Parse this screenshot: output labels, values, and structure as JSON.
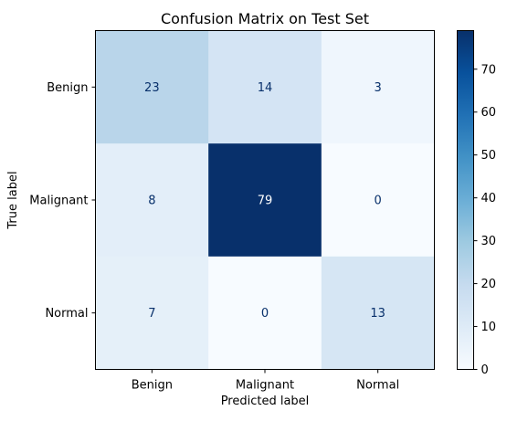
{
  "chart_data": {
    "type": "heatmap",
    "title": "Confusion Matrix on Test Set",
    "xlabel": "Predicted label",
    "ylabel": "True label",
    "x_categories": [
      "Benign",
      "Malignant",
      "Normal"
    ],
    "y_categories": [
      "Benign",
      "Malignant",
      "Normal"
    ],
    "values": [
      [
        23,
        14,
        3
      ],
      [
        8,
        79,
        0
      ],
      [
        7,
        0,
        13
      ]
    ],
    "colorbar": {
      "min": 0,
      "max": 79,
      "ticks": [
        "0",
        "10",
        "20",
        "30",
        "40",
        "50",
        "60",
        "70"
      ],
      "colormap": "Blues"
    },
    "colors": {
      "text_dark": "#08306b",
      "text_light": "#ffffff"
    }
  }
}
